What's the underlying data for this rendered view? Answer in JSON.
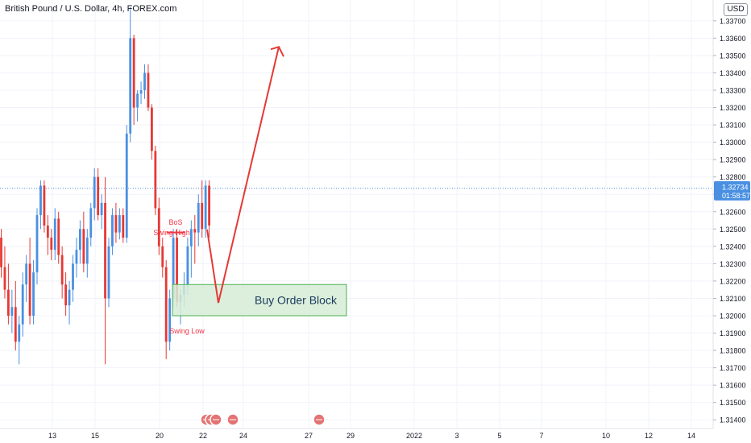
{
  "header": {
    "title": "British Pound / U.S. Dollar, 4h, FOREX.com",
    "currency": "USD"
  },
  "price_tag": {
    "price": "1.32734",
    "countdown": "01:58:57",
    "value": 1.32734
  },
  "colors": {
    "up": "#4a90e2",
    "down": "#e53935",
    "annotation": "#f23645",
    "zone_fill": "#d6ecd6",
    "zone_border": "#4caf50",
    "price_line": "#4a90e2",
    "event_icon": "#e57373"
  },
  "chart_data": {
    "type": "candlestick",
    "y_axis": {
      "range": [
        1.3135,
        1.3382
      ],
      "ticks": [
        "1.31400",
        "1.31500",
        "1.31600",
        "1.31700",
        "1.31800",
        "1.31900",
        "1.32000",
        "1.32100",
        "1.32200",
        "1.32300",
        "1.32400",
        "1.32500",
        "1.32600",
        "1.32700",
        "1.32800",
        "1.32900",
        "1.33000",
        "1.33100",
        "1.33200",
        "1.33300",
        "1.33400",
        "1.33500",
        "1.33600",
        "1.33700"
      ]
    },
    "x_axis": {
      "ticks": [
        "13",
        "15",
        "20",
        "22",
        "24",
        "27",
        "29",
        "2022",
        "3",
        "5",
        "7",
        "10",
        "12",
        "14"
      ]
    },
    "grid": true,
    "candles": [
      [
        1.3245,
        1.325,
        1.3222,
        1.3228
      ],
      [
        1.3228,
        1.324,
        1.321,
        1.3215
      ],
      [
        1.3215,
        1.323,
        1.3195,
        1.32
      ],
      [
        1.32,
        1.3215,
        1.319,
        1.3205
      ],
      [
        1.3205,
        1.322,
        1.318,
        1.3185
      ],
      [
        1.3185,
        1.32,
        1.3172,
        1.3195
      ],
      [
        1.3195,
        1.3225,
        1.3188,
        1.3218
      ],
      [
        1.3218,
        1.3235,
        1.3208,
        1.323
      ],
      [
        1.323,
        1.3245,
        1.3195,
        1.32
      ],
      [
        1.32,
        1.3232,
        1.3195,
        1.3225
      ],
      [
        1.3225,
        1.3262,
        1.3218,
        1.3258
      ],
      [
        1.3258,
        1.3278,
        1.325,
        1.3275
      ],
      [
        1.3275,
        1.3278,
        1.3248,
        1.3252
      ],
      [
        1.3252,
        1.3258,
        1.3235,
        1.3245
      ],
      [
        1.3245,
        1.325,
        1.3232,
        1.3238
      ],
      [
        1.3238,
        1.3262,
        1.3232,
        1.3256
      ],
      [
        1.3256,
        1.326,
        1.323,
        1.3235
      ],
      [
        1.3235,
        1.324,
        1.321,
        1.3218
      ],
      [
        1.3218,
        1.3225,
        1.32,
        1.3206
      ],
      [
        1.3206,
        1.322,
        1.3195,
        1.3215
      ],
      [
        1.3215,
        1.3235,
        1.3208,
        1.323
      ],
      [
        1.323,
        1.3245,
        1.3222,
        1.3238
      ],
      [
        1.3238,
        1.3255,
        1.323,
        1.325
      ],
      [
        1.325,
        1.326,
        1.3225,
        1.323
      ],
      [
        1.323,
        1.325,
        1.3222,
        1.3245
      ],
      [
        1.3245,
        1.3265,
        1.324,
        1.3262
      ],
      [
        1.3262,
        1.3285,
        1.3255,
        1.328
      ],
      [
        1.328,
        1.3285,
        1.3255,
        1.3258
      ],
      [
        1.3258,
        1.327,
        1.325,
        1.3265
      ],
      [
        1.3265,
        1.328,
        1.3172,
        1.321
      ],
      [
        1.321,
        1.3245,
        1.3205,
        1.324
      ],
      [
        1.324,
        1.3262,
        1.3235,
        1.3258
      ],
      [
        1.3258,
        1.3265,
        1.3242,
        1.3248
      ],
      [
        1.3248,
        1.3262,
        1.3244,
        1.3258
      ],
      [
        1.3258,
        1.3262,
        1.3242,
        1.3245
      ],
      [
        1.3245,
        1.331,
        1.3242,
        1.3305
      ],
      [
        1.3305,
        1.3378,
        1.33,
        1.336
      ],
      [
        1.336,
        1.3362,
        1.331,
        1.332
      ],
      [
        1.332,
        1.333,
        1.3312,
        1.3328
      ],
      [
        1.3328,
        1.3335,
        1.3322,
        1.333
      ],
      [
        1.333,
        1.3345,
        1.3325,
        1.334
      ],
      [
        1.334,
        1.3345,
        1.3318,
        1.332
      ],
      [
        1.332,
        1.3322,
        1.329,
        1.3295
      ],
      [
        1.3295,
        1.3298,
        1.3258,
        1.3262
      ],
      [
        1.3262,
        1.3268,
        1.3235,
        1.324
      ],
      [
        1.324,
        1.3245,
        1.3222,
        1.3228
      ],
      [
        1.3228,
        1.3232,
        1.3175,
        1.3185
      ],
      [
        1.3185,
        1.3215,
        1.318,
        1.321
      ],
      [
        1.321,
        1.325,
        1.3205,
        1.3245
      ],
      [
        1.3245,
        1.325,
        1.3205,
        1.3208
      ],
      [
        1.3208,
        1.3215,
        1.3195,
        1.3212
      ],
      [
        1.3212,
        1.3225,
        1.3205,
        1.3218
      ],
      [
        1.3218,
        1.3245,
        1.3212,
        1.324
      ],
      [
        1.324,
        1.3255,
        1.3222,
        1.325
      ],
      [
        1.325,
        1.3258,
        1.323,
        1.3248
      ],
      [
        1.3248,
        1.327,
        1.324,
        1.3265
      ],
      [
        1.3265,
        1.3278,
        1.3245,
        1.325
      ],
      [
        1.325,
        1.3278,
        1.3245,
        1.3275
      ],
      [
        1.3275,
        1.3278,
        1.3245,
        1.3252
      ]
    ],
    "annotations": {
      "bos": "BoS",
      "swing_high": "Swing High",
      "swing_low": "Swing Low",
      "order_block": "Buy Order Block",
      "order_block_range": [
        1.32,
        1.3218
      ]
    }
  }
}
